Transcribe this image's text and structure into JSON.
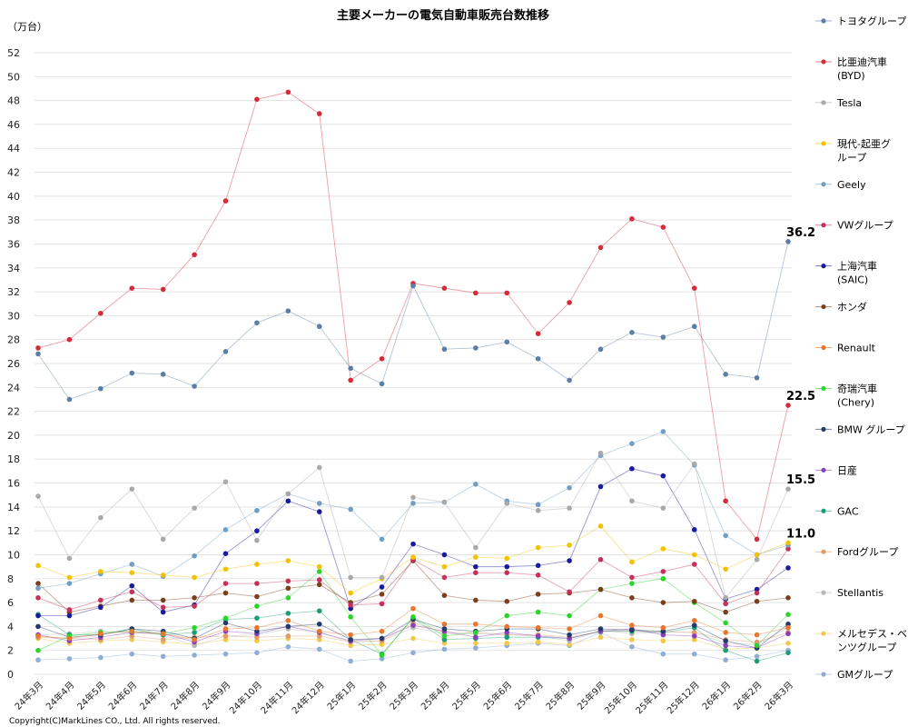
{
  "chart_data": {
    "type": "line",
    "title": "主要メーカーの電気自動車販売台数推移",
    "unit_label": "（万台）",
    "ylim": [
      0,
      52
    ],
    "ytick_step": 2,
    "grid": "horizontal",
    "legend_position": "right",
    "copyright": "Copyright(C)MarkLines CO., Ltd. All rights reserved.",
    "x": [
      "24年3月",
      "24年4月",
      "24年5月",
      "24年6月",
      "24年7月",
      "24年8月",
      "24年9月",
      "24年10月",
      "24年11月",
      "24年12月",
      "25年1月",
      "25年2月",
      "25年3月",
      "25年4月",
      "25年5月",
      "25年6月",
      "25年7月",
      "25年8月",
      "25年9月",
      "25年10月",
      "25年11月",
      "25年12月",
      "26年1月",
      "26年2月",
      "26年3月"
    ],
    "series": [
      {
        "name": "トヨタグループ",
        "color": "#5b7ea6",
        "values": [
          26.8,
          23.0,
          23.9,
          25.2,
          25.1,
          24.1,
          27.0,
          29.4,
          30.4,
          29.1,
          25.6,
          24.3,
          32.5,
          27.2,
          27.3,
          27.8,
          26.4,
          24.6,
          27.2,
          28.6,
          28.2,
          29.1,
          25.1,
          24.8,
          36.2
        ]
      },
      {
        "name": "比亜迪汽車(BYD)",
        "color": "#d42a3a",
        "values": [
          27.3,
          28.0,
          30.2,
          32.3,
          32.2,
          35.1,
          39.6,
          48.1,
          48.7,
          46.9,
          24.6,
          26.4,
          32.7,
          32.3,
          31.9,
          31.9,
          28.5,
          31.1,
          35.7,
          38.1,
          37.4,
          32.3,
          14.5,
          11.3,
          22.5
        ]
      },
      {
        "name": "Tesla",
        "color": "#a9a9a9",
        "values": [
          14.9,
          9.7,
          13.1,
          15.5,
          11.3,
          13.9,
          16.1,
          11.2,
          15.1,
          17.3,
          8.1,
          8.1,
          14.8,
          14.4,
          10.6,
          14.3,
          13.7,
          13.9,
          18.5,
          14.5,
          13.9,
          17.6,
          6.4,
          9.6,
          15.5
        ]
      },
      {
        "name": "現代-起亜グループ",
        "color": "#f2c200",
        "values": [
          9.1,
          8.1,
          8.6,
          8.5,
          8.3,
          8.1,
          8.8,
          9.2,
          9.5,
          9.0,
          6.8,
          8.0,
          9.8,
          9.0,
          9.8,
          9.7,
          10.6,
          10.8,
          12.4,
          9.4,
          10.5,
          10.0,
          8.8,
          10.0,
          11.0
        ]
      },
      {
        "name": "Geely",
        "color": "#6f9ec6",
        "values": [
          7.2,
          7.6,
          8.4,
          9.2,
          8.2,
          9.9,
          12.1,
          13.7,
          15.1,
          14.3,
          13.8,
          11.3,
          14.3,
          14.4,
          15.9,
          14.5,
          14.2,
          15.6,
          18.3,
          19.3,
          20.3,
          17.5,
          11.6,
          10.0,
          10.8
        ]
      },
      {
        "name": "VWグループ",
        "color": "#c8305a",
        "values": [
          6.4,
          5.4,
          6.2,
          6.9,
          5.6,
          5.7,
          7.6,
          7.6,
          7.8,
          7.9,
          5.8,
          5.9,
          9.6,
          8.1,
          8.5,
          8.5,
          8.3,
          6.9,
          9.6,
          8.1,
          8.6,
          9.2,
          5.9,
          6.8,
          10.5
        ]
      },
      {
        "name": "上海汽車(SAIC)",
        "color": "#1a1a9c",
        "values": [
          4.9,
          4.9,
          5.6,
          7.4,
          5.2,
          5.8,
          10.1,
          12.0,
          14.5,
          13.6,
          5.5,
          7.3,
          10.9,
          10.0,
          9.0,
          9.0,
          9.1,
          9.5,
          15.7,
          17.2,
          16.6,
          12.1,
          6.3,
          7.1,
          8.9
        ]
      },
      {
        "name": "ホンダ",
        "color": "#7b3f1d",
        "values": [
          7.6,
          5.2,
          5.7,
          6.2,
          6.2,
          6.4,
          6.8,
          6.5,
          7.2,
          7.5,
          6.0,
          6.7,
          9.5,
          6.6,
          6.2,
          6.1,
          6.7,
          6.8,
          7.1,
          6.4,
          6.0,
          6.1,
          5.2,
          6.1,
          6.4
        ]
      },
      {
        "name": "Renault",
        "color": "#e8772e",
        "values": [
          3.2,
          3.0,
          3.4,
          3.6,
          3.4,
          2.9,
          3.8,
          3.9,
          4.5,
          3.6,
          3.3,
          3.6,
          5.5,
          4.2,
          4.2,
          4.0,
          3.9,
          3.8,
          4.9,
          4.1,
          3.9,
          4.5,
          3.5,
          3.3,
          3.9
        ]
      },
      {
        "name": "奇瑞汽車(Chery)",
        "color": "#2bd42b",
        "values": [
          2.0,
          3.2,
          3.5,
          3.6,
          3.4,
          3.9,
          4.7,
          5.7,
          6.4,
          8.6,
          4.8,
          1.6,
          4.8,
          3.2,
          3.5,
          4.9,
          5.2,
          4.9,
          7.1,
          7.6,
          8.0,
          6.0,
          4.3,
          2.4,
          5.0
        ]
      },
      {
        "name": "BMW グループ",
        "color": "#243a6a",
        "values": [
          4.0,
          3.1,
          3.3,
          3.8,
          3.6,
          3.0,
          4.3,
          3.6,
          4.0,
          4.2,
          2.9,
          3.0,
          4.6,
          3.8,
          3.6,
          3.8,
          3.8,
          3.3,
          3.8,
          3.7,
          3.6,
          4.1,
          2.8,
          2.2,
          4.2
        ]
      },
      {
        "name": "日産",
        "color": "#8a3fb8",
        "values": [
          3.3,
          2.8,
          3.1,
          3.5,
          3.4,
          2.7,
          3.6,
          3.4,
          4.0,
          3.5,
          2.8,
          3.0,
          4.1,
          3.6,
          3.1,
          3.5,
          3.2,
          3.0,
          3.6,
          3.8,
          3.3,
          3.2,
          2.4,
          2.2,
          3.4
        ]
      },
      {
        "name": "GAC",
        "color": "#1a9e78",
        "values": [
          5.0,
          3.3,
          3.3,
          3.8,
          3.3,
          3.5,
          4.6,
          4.7,
          5.1,
          5.3,
          2.9,
          1.7,
          4.7,
          2.9,
          3.0,
          3.1,
          3.1,
          3.0,
          3.6,
          3.6,
          3.5,
          3.9,
          2.0,
          1.1,
          1.8
        ]
      },
      {
        "name": "Fordグループ",
        "color": "#e39a6a",
        "values": [
          3.1,
          3.0,
          2.9,
          3.2,
          2.9,
          3.1,
          3.2,
          3.1,
          3.2,
          3.2,
          2.7,
          2.8,
          4.3,
          3.5,
          3.5,
          3.3,
          3.3,
          3.1,
          3.6,
          3.6,
          3.6,
          3.5,
          2.9,
          2.7,
          3.5
        ]
      },
      {
        "name": "Stellantis",
        "color": "#b8b8b8",
        "values": [
          3.3,
          3.4,
          3.6,
          3.5,
          3.3,
          2.4,
          3.2,
          3.3,
          3.8,
          3.5,
          2.7,
          2.8,
          3.9,
          3.4,
          3.4,
          3.3,
          3.2,
          2.8,
          3.7,
          3.4,
          3.5,
          3.5,
          2.6,
          2.5,
          3.9
        ]
      },
      {
        "name": "メルセデス・ベンツグループ",
        "color": "#f2c84b",
        "values": [
          3.0,
          2.6,
          2.8,
          2.9,
          2.7,
          2.5,
          2.9,
          2.8,
          3.0,
          2.9,
          2.4,
          2.5,
          3.0,
          2.6,
          2.6,
          2.6,
          2.7,
          2.5,
          3.1,
          2.9,
          2.8,
          2.9,
          2.1,
          2.2,
          2.6
        ]
      },
      {
        "name": "GMグループ",
        "color": "#8faed6",
        "values": [
          1.2,
          1.3,
          1.4,
          1.7,
          1.5,
          1.6,
          1.7,
          1.8,
          2.3,
          2.1,
          1.1,
          1.3,
          1.8,
          2.1,
          2.2,
          2.4,
          2.6,
          2.4,
          3.5,
          2.3,
          1.7,
          1.7,
          1.2,
          1.5,
          2.0
        ]
      }
    ],
    "callouts": [
      {
        "series": "トヨタグループ",
        "label": "36.2"
      },
      {
        "series": "比亜迪汽車(BYD)",
        "label": "22.5"
      },
      {
        "series": "Tesla",
        "label": "15.5"
      },
      {
        "series": "現代-起亜グループ",
        "label": "11.0"
      }
    ],
    "legend": [
      {
        "lines": [
          "トヨタグループ"
        ]
      },
      {
        "lines": [
          "比亜迪汽車",
          "(BYD)"
        ]
      },
      {
        "lines": [
          "Tesla"
        ]
      },
      {
        "lines": [
          "現代-起亜グ",
          "ループ"
        ]
      },
      {
        "lines": [
          "Geely"
        ]
      },
      {
        "lines": [
          "VWグループ"
        ]
      },
      {
        "lines": [
          "上海汽車",
          "(SAIC)"
        ]
      },
      {
        "lines": [
          "ホンダ"
        ]
      },
      {
        "lines": [
          "Renault"
        ]
      },
      {
        "lines": [
          "奇瑞汽車",
          "(Chery)"
        ]
      },
      {
        "lines": [
          "BMW グループ"
        ]
      },
      {
        "lines": [
          "日産"
        ]
      },
      {
        "lines": [
          "GAC"
        ]
      },
      {
        "lines": [
          "Fordグループ"
        ]
      },
      {
        "lines": [
          "Stellantis"
        ]
      },
      {
        "lines": [
          "メルセデス・ベ",
          "ンツグループ"
        ]
      },
      {
        "lines": [
          "GMグループ"
        ]
      }
    ]
  }
}
